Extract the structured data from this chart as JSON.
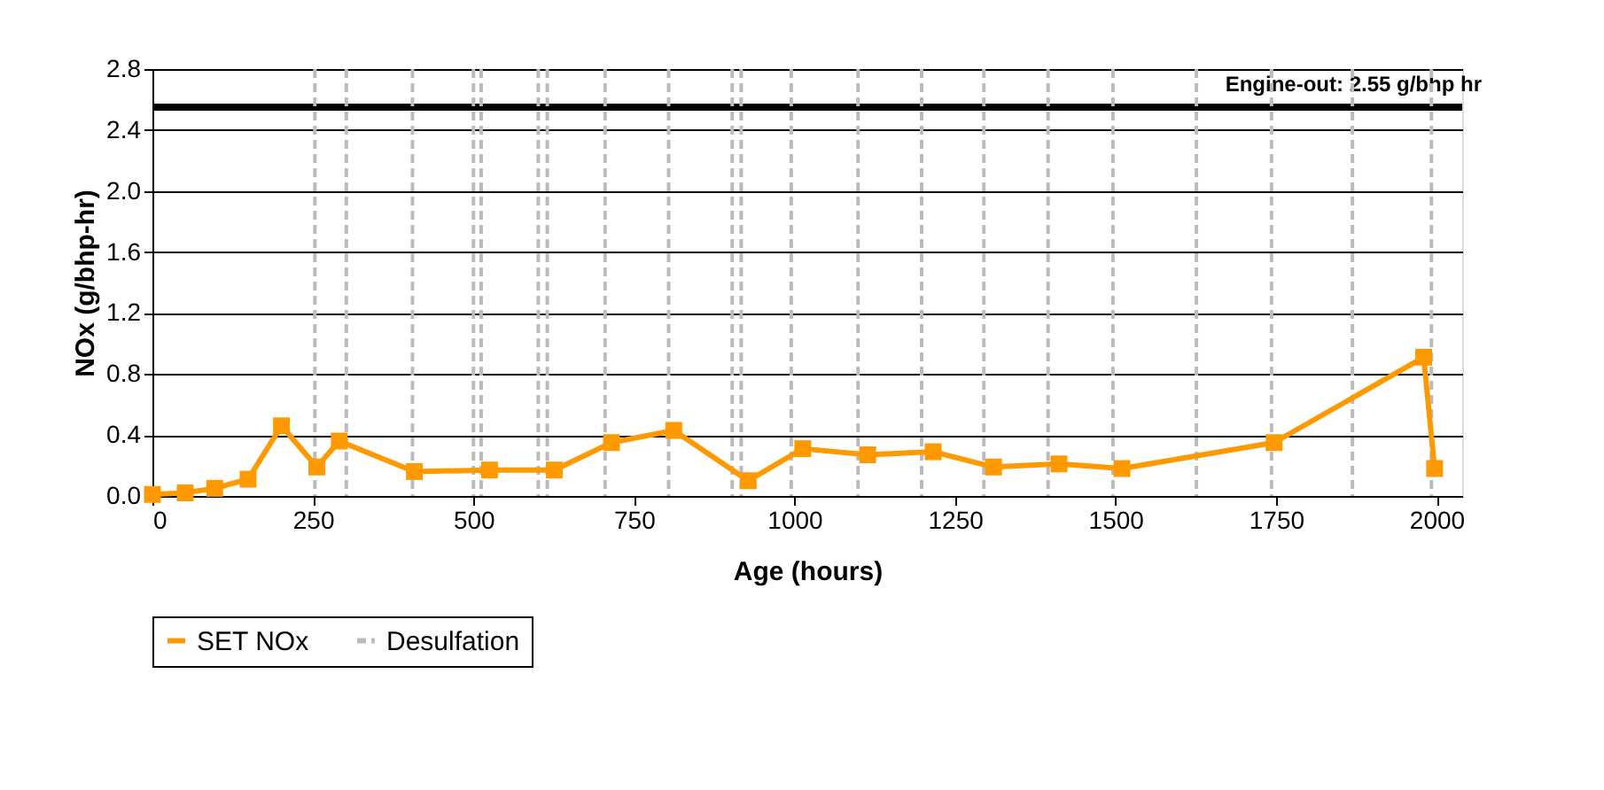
{
  "chart_data": {
    "type": "line",
    "xlabel": "Age (hours)",
    "ylabel": "NOx (g/bhp-hr)",
    "x": [
      0,
      51,
      97,
      149,
      201,
      256,
      291,
      408,
      525,
      626,
      715,
      812,
      928,
      1013,
      1114,
      1216,
      1310,
      1412,
      1510,
      1747,
      1980,
      1997
    ],
    "series": [
      {
        "name": "SET NOx",
        "color": "#ff9900",
        "values": [
          0.01,
          0.02,
          0.05,
          0.11,
          0.46,
          0.19,
          0.36,
          0.16,
          0.17,
          0.17,
          0.35,
          0.43,
          0.1,
          0.31,
          0.27,
          0.29,
          0.19,
          0.21,
          0.18,
          0.35,
          0.91,
          0.18
        ]
      }
    ],
    "xlim": [
      0,
      2040
    ],
    "xticks": [
      0,
      250,
      500,
      750,
      1000,
      1250,
      1500,
      1750,
      2000
    ],
    "ylim": [
      0,
      2.8
    ],
    "yticks": [
      {
        "value": 0,
        "label": "0.0"
      },
      0.4,
      0.8,
      1.2,
      1.6,
      {
        "value": 2,
        "label": "2.0"
      },
      2.4,
      2.8
    ],
    "grid": "y",
    "marker": "square",
    "line_style": "solid",
    "legend": "bottom",
    "ref_lines": [
      {
        "axis": "y",
        "value": 2.55,
        "label": "Engine-out: 2.55 g/bhp hr",
        "color": "#000000",
        "line_style": "solid"
      },
      {
        "axis": "x",
        "value": 253,
        "label": "Desulfation",
        "color": "#bbbbbb",
        "line_style": "dashed"
      },
      {
        "axis": "x",
        "value": 302,
        "label": null,
        "color": "#bbbbbb",
        "line_style": "dashed"
      },
      {
        "axis": "x",
        "value": 405,
        "label": null,
        "color": "#bbbbbb",
        "line_style": "dashed"
      },
      {
        "axis": "x",
        "value": 500,
        "label": null,
        "color": "#bbbbbb",
        "line_style": "dashed"
      },
      {
        "axis": "x",
        "value": 512,
        "label": null,
        "color": "#bbbbbb",
        "line_style": "dashed"
      },
      {
        "axis": "x",
        "value": 601,
        "label": null,
        "color": "#bbbbbb",
        "line_style": "dashed"
      },
      {
        "axis": "x",
        "value": 615,
        "label": null,
        "color": "#bbbbbb",
        "line_style": "dashed"
      },
      {
        "axis": "x",
        "value": 705,
        "label": null,
        "color": "#bbbbbb",
        "line_style": "dashed"
      },
      {
        "axis": "x",
        "value": 804,
        "label": null,
        "color": "#bbbbbb",
        "line_style": "dashed"
      },
      {
        "axis": "x",
        "value": 903,
        "label": null,
        "color": "#bbbbbb",
        "line_style": "dashed"
      },
      {
        "axis": "x",
        "value": 917,
        "label": null,
        "color": "#bbbbbb",
        "line_style": "dashed"
      },
      {
        "axis": "x",
        "value": 995,
        "label": null,
        "color": "#bbbbbb",
        "line_style": "dashed"
      },
      {
        "axis": "x",
        "value": 1099,
        "label": null,
        "color": "#bbbbbb",
        "line_style": "dashed"
      },
      {
        "axis": "x",
        "value": 1198,
        "label": null,
        "color": "#bbbbbb",
        "line_style": "dashed"
      },
      {
        "axis": "x",
        "value": 1295,
        "label": null,
        "color": "#bbbbbb",
        "line_style": "dashed"
      },
      {
        "axis": "x",
        "value": 1395,
        "label": null,
        "color": "#bbbbbb",
        "line_style": "dashed"
      },
      {
        "axis": "x",
        "value": 1496,
        "label": null,
        "color": "#bbbbbb",
        "line_style": "dashed"
      },
      {
        "axis": "x",
        "value": 1626,
        "label": null,
        "color": "#bbbbbb",
        "line_style": "dashed"
      },
      {
        "axis": "x",
        "value": 1743,
        "label": null,
        "color": "#bbbbbb",
        "line_style": "dashed"
      },
      {
        "axis": "x",
        "value": 1869,
        "label": null,
        "color": "#bbbbbb",
        "line_style": "dashed"
      },
      {
        "axis": "x",
        "value": 1992,
        "label": null,
        "color": "#bbbbbb",
        "line_style": "dashed"
      }
    ]
  }
}
